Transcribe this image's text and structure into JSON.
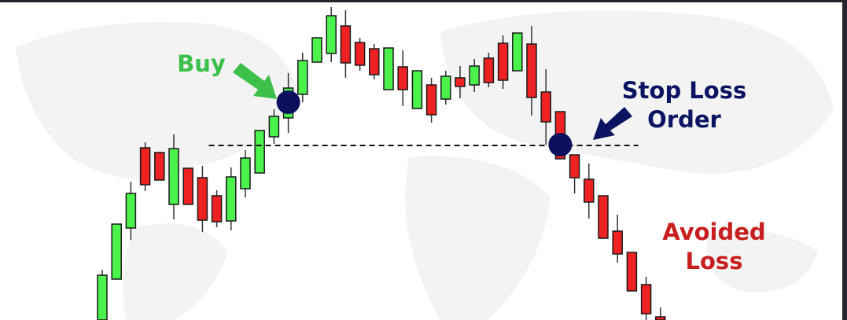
{
  "colors": {
    "up": "#4cf24c",
    "down": "#ee2222",
    "outline": "#1a1a1a",
    "marker": "#0b0f5c",
    "buy_text": "#3cc04a",
    "stop_text": "#0b1460",
    "loss_text": "#c81e1e",
    "map": "#f3f3f3"
  },
  "chart_data": {
    "type": "candlestick",
    "title": "",
    "xlabel": "",
    "ylabel": "",
    "axes_visible": false,
    "grid": false,
    "ylim": [
      0,
      410
    ],
    "candles": [
      {
        "o": 3,
        "c": 60,
        "h": 67,
        "l": 0
      },
      {
        "o": 55,
        "c": 125,
        "h": 125,
        "l": 55
      },
      {
        "o": 120,
        "c": 164,
        "h": 179,
        "l": 105
      },
      {
        "o": 222,
        "c": 175,
        "h": 229,
        "l": 167
      },
      {
        "o": 216,
        "c": 181,
        "h": 216,
        "l": 181
      },
      {
        "o": 150,
        "c": 221,
        "h": 239,
        "l": 131
      },
      {
        "o": 196,
        "c": 150,
        "h": 196,
        "l": 150
      },
      {
        "o": 184,
        "c": 130,
        "h": 199,
        "l": 115
      },
      {
        "o": 161,
        "c": 128,
        "h": 168,
        "l": 121
      },
      {
        "o": 129,
        "c": 185,
        "h": 197,
        "l": 117
      },
      {
        "o": 170,
        "c": 209,
        "h": 219,
        "l": 159
      },
      {
        "o": 190,
        "c": 244,
        "h": 244,
        "l": 190
      },
      {
        "o": 236,
        "c": 262,
        "h": 271,
        "l": 227
      },
      {
        "o": 260,
        "c": 298,
        "h": 317,
        "l": 241
      },
      {
        "o": 290,
        "c": 333,
        "h": 343,
        "l": 280
      },
      {
        "o": 331,
        "c": 362,
        "h": 362,
        "l": 331
      },
      {
        "o": 342,
        "c": 390,
        "h": 401,
        "l": 331
      },
      {
        "o": 377,
        "c": 330,
        "h": 397,
        "l": 311
      },
      {
        "o": 356,
        "c": 327,
        "h": 362,
        "l": 320
      },
      {
        "o": 348,
        "c": 315,
        "h": 354,
        "l": 309
      },
      {
        "o": 296,
        "c": 349,
        "h": 349,
        "l": 296
      },
      {
        "o": 325,
        "c": 296,
        "h": 346,
        "l": 275
      },
      {
        "o": 272,
        "c": 320,
        "h": 320,
        "l": 272
      },
      {
        "o": 302,
        "c": 264,
        "h": 311,
        "l": 254
      },
      {
        "o": 284,
        "c": 313,
        "h": 320,
        "l": 277
      },
      {
        "o": 311,
        "c": 300,
        "h": 326,
        "l": 285
      },
      {
        "o": 302,
        "c": 326,
        "h": 335,
        "l": 293
      },
      {
        "o": 336,
        "c": 305,
        "h": 343,
        "l": 299
      },
      {
        "o": 355,
        "c": 308,
        "h": 365,
        "l": 297
      },
      {
        "o": 320,
        "c": 368,
        "h": 368,
        "l": 320
      },
      {
        "o": 354,
        "c": 286,
        "h": 377,
        "l": 263
      },
      {
        "o": 293,
        "c": 255,
        "h": 322,
        "l": 226
      },
      {
        "o": 268,
        "c": 208,
        "h": 268,
        "l": 208
      },
      {
        "o": 213,
        "c": 184,
        "h": 213,
        "l": 164
      },
      {
        "o": 182,
        "c": 153,
        "h": 202,
        "l": 132
      },
      {
        "o": 161,
        "c": 107,
        "h": 161,
        "l": 107
      },
      {
        "o": 116,
        "c": 87,
        "h": 137,
        "l": 76
      },
      {
        "o": 89,
        "c": 40,
        "h": 89,
        "l": 40
      },
      {
        "o": 48,
        "c": 11,
        "h": 58,
        "l": 3
      },
      {
        "o": 7,
        "c": 3,
        "h": 19,
        "l": 0
      }
    ],
    "stop_level": 225,
    "stop_level_range": [
      8,
      38
    ],
    "markers": [
      {
        "label": "Buy",
        "candle": 13,
        "price": 280
      },
      {
        "label": "Stop Loss Order",
        "candle": 32,
        "price": 226
      }
    ],
    "annotations": {
      "buy": "Buy",
      "stop_line1": "Stop Loss",
      "stop_line2": "Order",
      "loss_line1": "Avoided",
      "loss_line2": "Loss"
    }
  }
}
